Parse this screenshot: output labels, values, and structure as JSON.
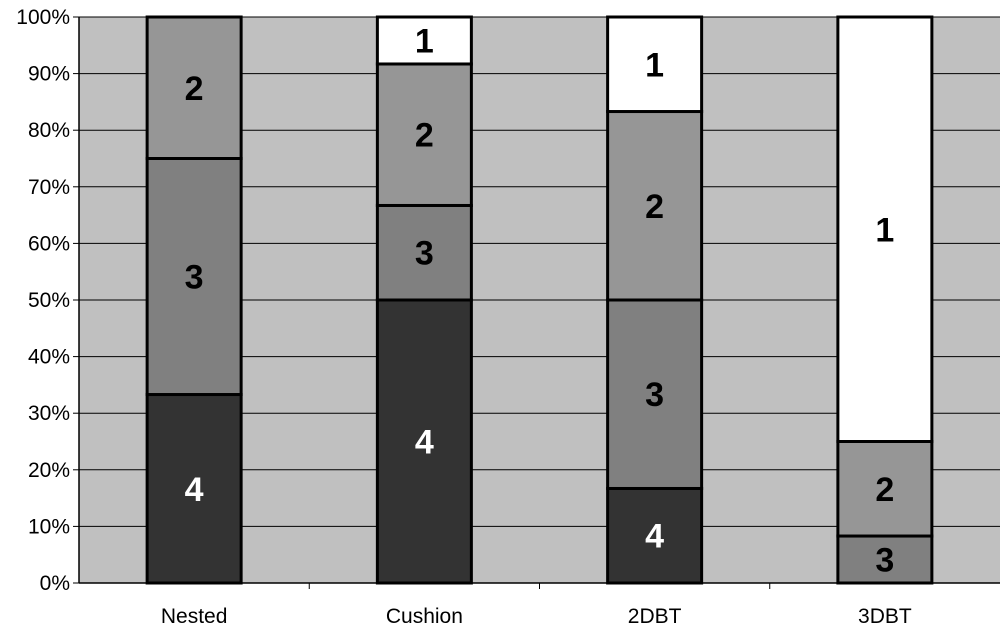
{
  "chart_data": {
    "type": "bar",
    "stacked": true,
    "percent_stacked": true,
    "categories": [
      "Nested",
      "Cushion",
      "2DBT",
      "3DBT"
    ],
    "series": [
      {
        "name": "4",
        "color": "#333333",
        "label_color": "#ffffff",
        "values": [
          33.3,
          50.0,
          16.7,
          0
        ]
      },
      {
        "name": "3",
        "color": "#808080",
        "label_color": "#000000",
        "values": [
          41.7,
          16.7,
          33.3,
          8.3
        ]
      },
      {
        "name": "2",
        "color": "#969696",
        "label_color": "#000000",
        "values": [
          25.0,
          25.0,
          33.3,
          16.7
        ]
      },
      {
        "name": "1",
        "color": "#ffffff",
        "label_color": "#000000",
        "values": [
          0,
          8.3,
          16.7,
          75.0
        ]
      }
    ],
    "ylim": [
      0,
      100
    ],
    "yticks": [
      "0%",
      "10%",
      "20%",
      "30%",
      "40%",
      "50%",
      "60%",
      "70%",
      "80%",
      "90%",
      "100%"
    ],
    "grid": true,
    "plot_background": "#c0c0c0",
    "legend": "none",
    "title": "",
    "xlabel": "",
    "ylabel": ""
  }
}
